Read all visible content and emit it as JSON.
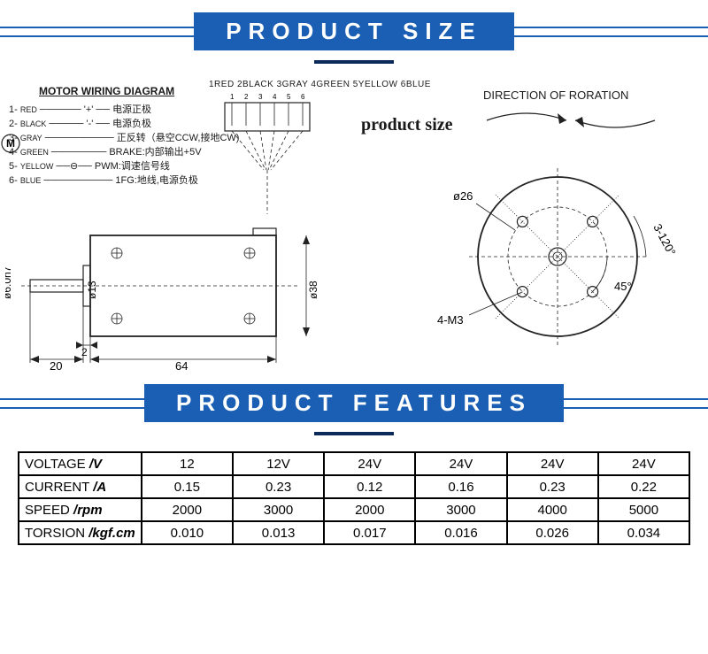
{
  "banners": {
    "size": "PRODUCT SIZE",
    "features": "PRODUCT FEATURES"
  },
  "wiring": {
    "title": "MOTOR WIRING DIAGRAM",
    "motor_label": "M",
    "pins": [
      {
        "num": "1-",
        "color": "RED",
        "desc": "电源正极",
        "symbol": "'+'"
      },
      {
        "num": "2-",
        "color": "BLACK",
        "desc": "电源负极",
        "symbol": "'-'"
      },
      {
        "num": "3-",
        "color": "GRAY",
        "desc": "正反转（悬空CCW,接地CW)",
        "symbol": ""
      },
      {
        "num": "4-",
        "color": "GREEN",
        "desc": "BRAKE:内部输出+5V",
        "symbol": ""
      },
      {
        "num": "5-",
        "color": "YELLOW",
        "desc": "PWM:调速信号线",
        "symbol": ""
      },
      {
        "num": "6-",
        "color": "BLUE",
        "desc": "1FG:地线,电源负极",
        "symbol": ""
      }
    ],
    "connector_header": "1RED 2BLACK 3GRAY 4GREEN 5YELLOW 6BLUE",
    "connector_nums": [
      "1",
      "2",
      "3",
      "4",
      "5",
      "6"
    ]
  },
  "labels": {
    "product_size": "product size",
    "direction": "DIRECTION OF RORATION"
  },
  "side_view": {
    "length_body": "64",
    "length_shaft": "20",
    "shaft_end": "2",
    "shaft_dia": "ø6.0h7",
    "boss_dia": "ø13",
    "motor_dia": "ø38"
  },
  "face_view": {
    "pcd": "ø26",
    "holes": "4-M3",
    "angle1": "3-120°",
    "angle2": "45°"
  },
  "features_table": {
    "columns": [
      "",
      "c1",
      "c2",
      "c3",
      "c4",
      "c5",
      "c6"
    ],
    "rows": [
      {
        "label": "VOLTAGE",
        "unit": "/V",
        "cells": [
          "12",
          "12V",
          "24V",
          "24V",
          "24V",
          "24V"
        ]
      },
      {
        "label": "CURRENT",
        "unit": "/A",
        "cells": [
          "0.15",
          "0.23",
          "0.12",
          "0.16",
          "0.23",
          "0.22"
        ]
      },
      {
        "label": "SPEED",
        "unit": "/rpm",
        "cells": [
          "2000",
          "3000",
          "2000",
          "3000",
          "4000",
          "5000"
        ]
      },
      {
        "label": "TORSION",
        "unit": "/kgf.cm",
        "cells": [
          "0.010",
          "0.013",
          "0.017",
          "0.016",
          "0.026",
          "0.034"
        ]
      }
    ]
  },
  "style": {
    "banner_bg": "#1a5fb4",
    "banner_fg": "#ffffff",
    "line_color": "#222222"
  }
}
